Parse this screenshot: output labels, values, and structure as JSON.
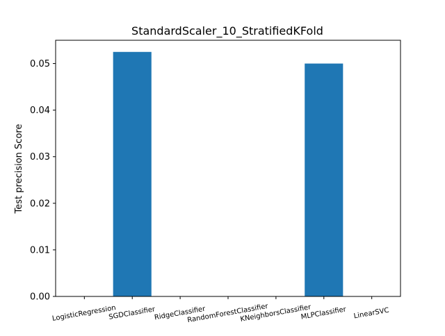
{
  "chart_data": {
    "type": "bar",
    "title": "StandardScaler_10_StratifiedKFold",
    "xlabel": "",
    "ylabel": "Test precision Score",
    "categories": [
      "LogisticRegression",
      "SGDClassifier",
      "RidgeClassifier",
      "RandomForestClassifier",
      "KNeighborsClassifier",
      "MLPClassifier",
      "LinearSVC"
    ],
    "values": [
      0.0,
      0.0525,
      0.0,
      0.0,
      0.0,
      0.05,
      0.0
    ],
    "ylim": [
      0,
      0.055
    ],
    "yticks": [
      0.0,
      0.01,
      0.02,
      0.03,
      0.04,
      0.05
    ],
    "ytick_labels": [
      "0.00",
      "0.01",
      "0.02",
      "0.03",
      "0.04",
      "0.05"
    ],
    "bar_color": "#1f77b4",
    "grid": false,
    "legend": "none"
  }
}
